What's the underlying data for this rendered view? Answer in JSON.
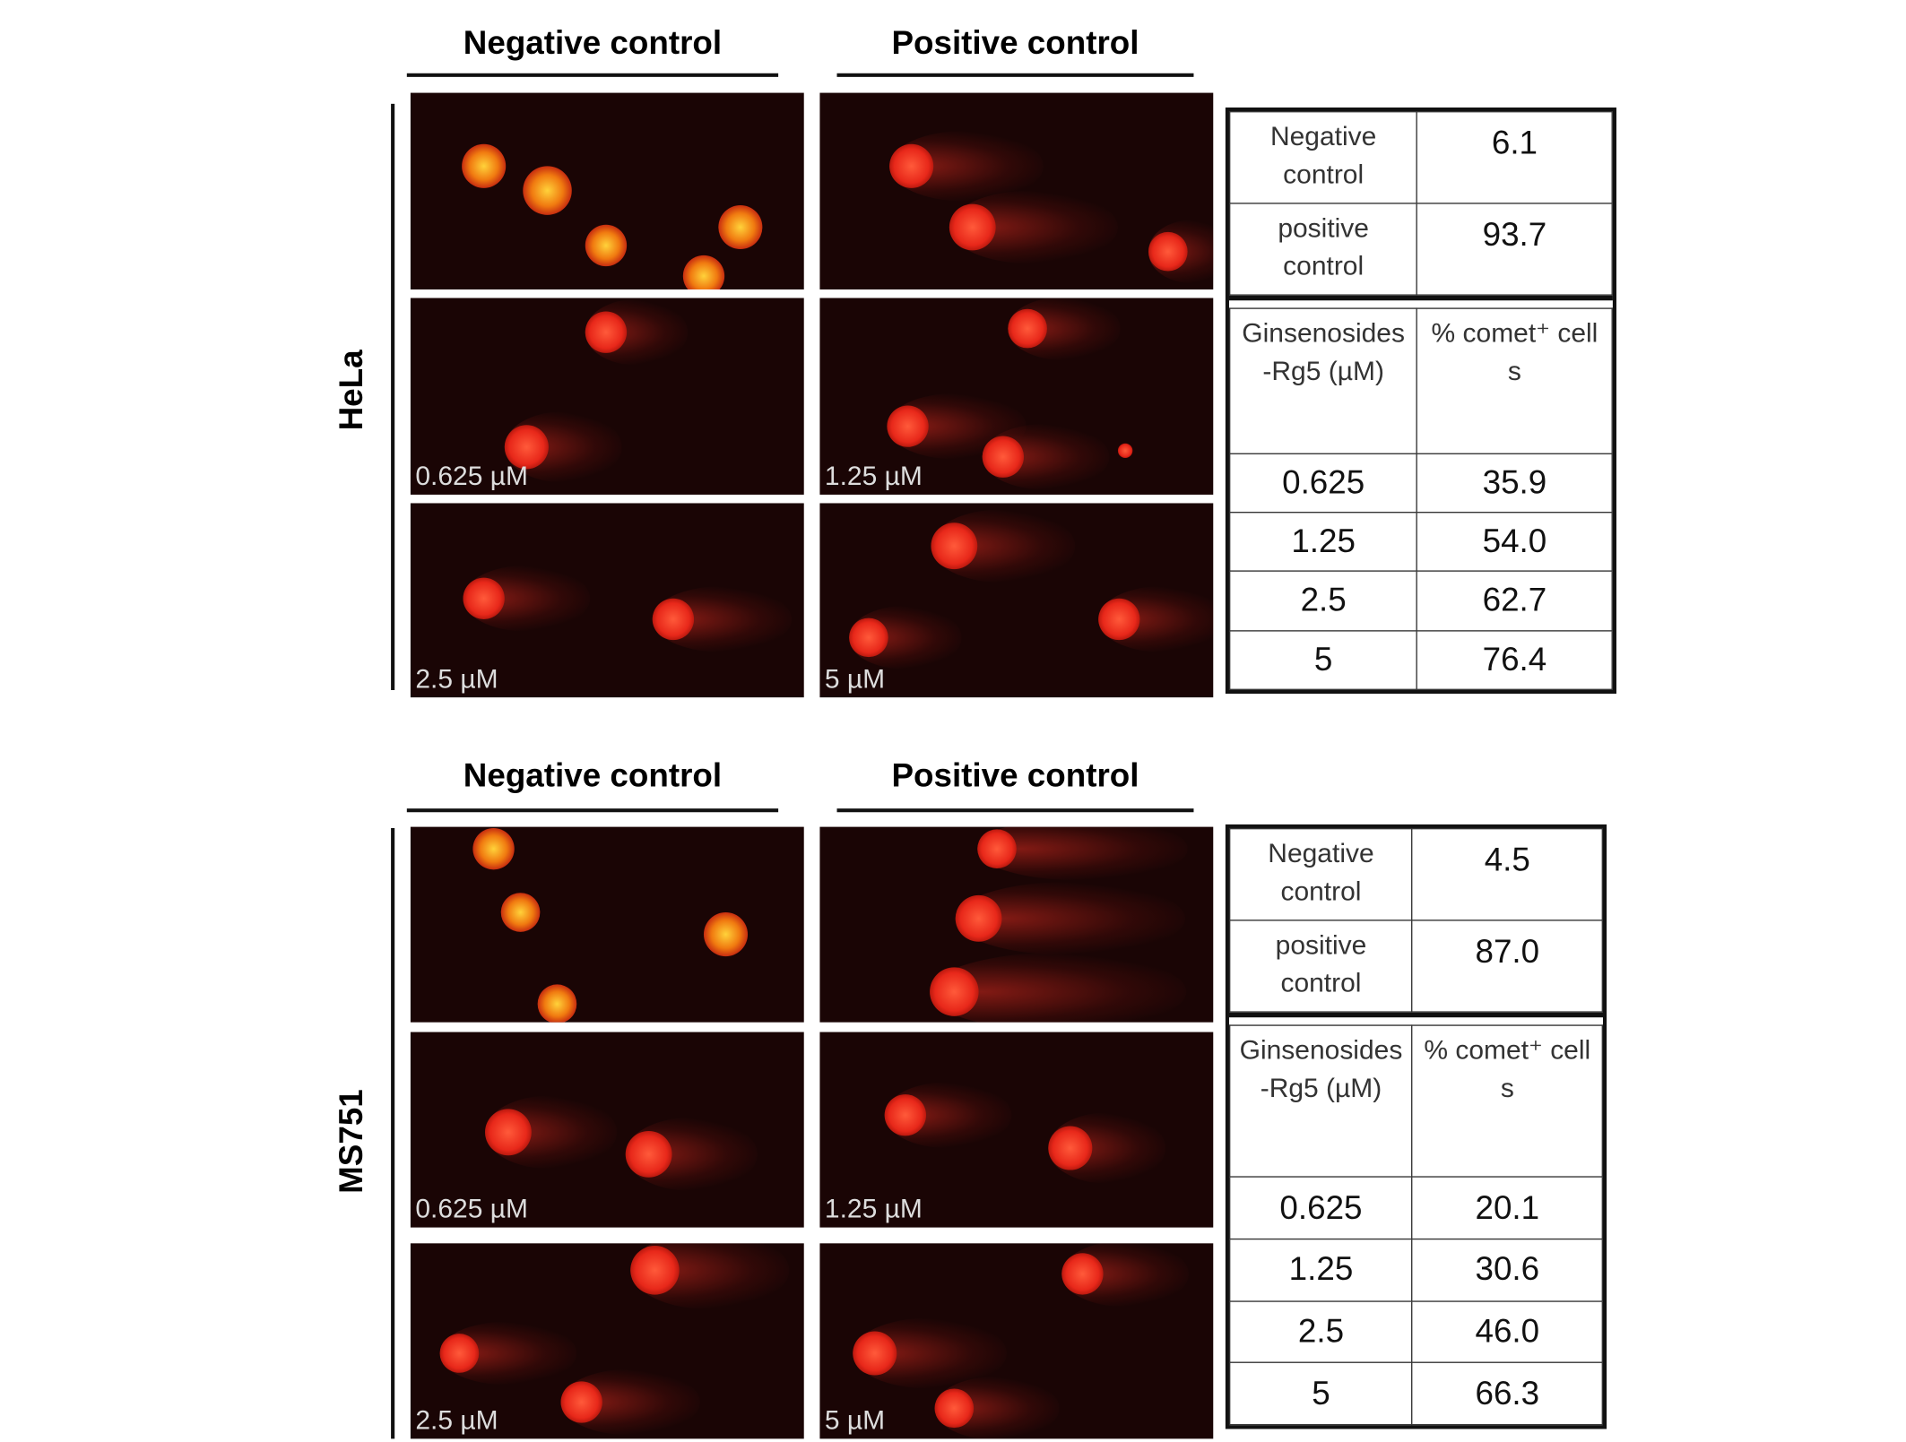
{
  "panels": [
    {
      "cell_line": "HeLa",
      "columns": [
        "Negative control",
        "Positive control"
      ],
      "image_labels": [
        "0.625 µM",
        "1.25 µM",
        "2.5 µM",
        "5 µM"
      ],
      "table": {
        "controls": [
          [
            "Negative control",
            "6.1"
          ],
          [
            "positive control",
            "93.7"
          ]
        ],
        "header": [
          "Ginsenosides-Rg5 (µM)",
          "% comet⁺ cells"
        ],
        "rows": [
          [
            "0.625",
            "35.9"
          ],
          [
            "1.25",
            "54.0"
          ],
          [
            "2.5",
            "62.7"
          ],
          [
            "5",
            "76.4"
          ]
        ]
      }
    },
    {
      "cell_line": "MS751",
      "columns": [
        "Negative control",
        "Positive control"
      ],
      "image_labels": [
        "0.625 µM",
        "1.25 µM",
        "2.5 µM",
        "5 µM"
      ],
      "table": {
        "controls": [
          [
            "Negative control",
            "4.5"
          ],
          [
            "positive control",
            "87.0"
          ]
        ],
        "header": [
          "Ginsenosides-Rg5 (µM)",
          "% comet⁺ cells"
        ],
        "rows": [
          [
            "0.625",
            "20.1"
          ],
          [
            "1.25",
            "30.6"
          ],
          [
            "2.5",
            "46.0"
          ],
          [
            "5",
            "66.3"
          ]
        ]
      }
    }
  ]
}
